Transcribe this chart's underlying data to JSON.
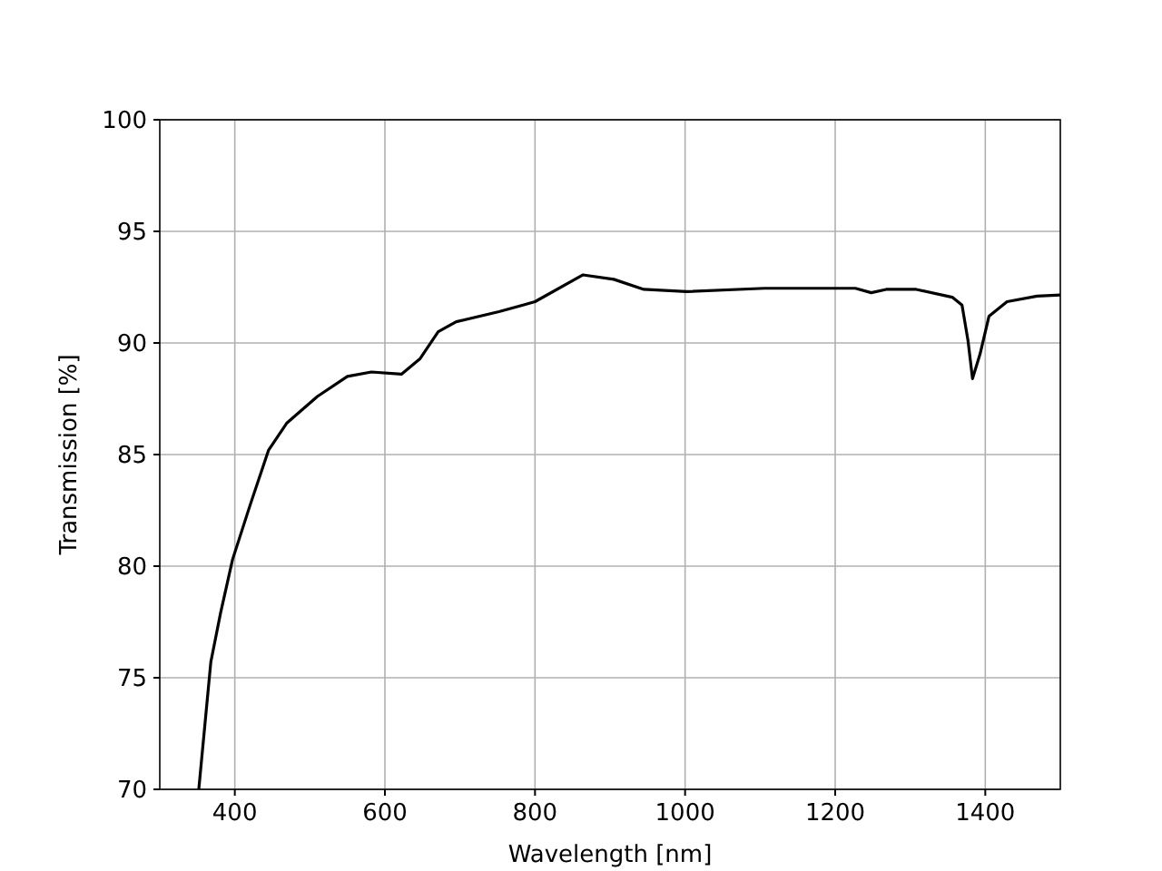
{
  "chart_data": {
    "type": "line",
    "xlabel": "Wavelength [nm]",
    "ylabel": "Transmission [%]",
    "xlim": [
      300,
      1500
    ],
    "xticks": [
      400,
      600,
      800,
      1000,
      1200,
      1400
    ],
    "ylim": [
      70,
      100
    ],
    "yticks": [
      70,
      75,
      80,
      85,
      90,
      95,
      100
    ],
    "grid": true,
    "series": [
      {
        "color": "#000000",
        "x": [
          352,
          368,
          381,
          397,
          421,
          445,
          469,
          510,
          550,
          582,
          622,
          647,
          671,
          695,
          752,
          784,
          800,
          864,
          905,
          945,
          1002,
          1106,
          1227,
          1248,
          1268,
          1308,
          1356,
          1369,
          1377,
          1383,
          1393,
          1405,
          1429,
          1469,
          1500
        ],
        "values": [
          70,
          75.7,
          77.9,
          80.3,
          82.8,
          85.2,
          86.4,
          87.6,
          88.5,
          88.7,
          88.6,
          89.3,
          90.5,
          90.95,
          91.4,
          91.7,
          91.85,
          93.05,
          92.85,
          92.4,
          92.3,
          92.45,
          92.45,
          92.25,
          92.4,
          92.4,
          92.05,
          91.7,
          90.1,
          88.4,
          89.5,
          91.2,
          91.85,
          92.1,
          92.15
        ]
      }
    ]
  }
}
